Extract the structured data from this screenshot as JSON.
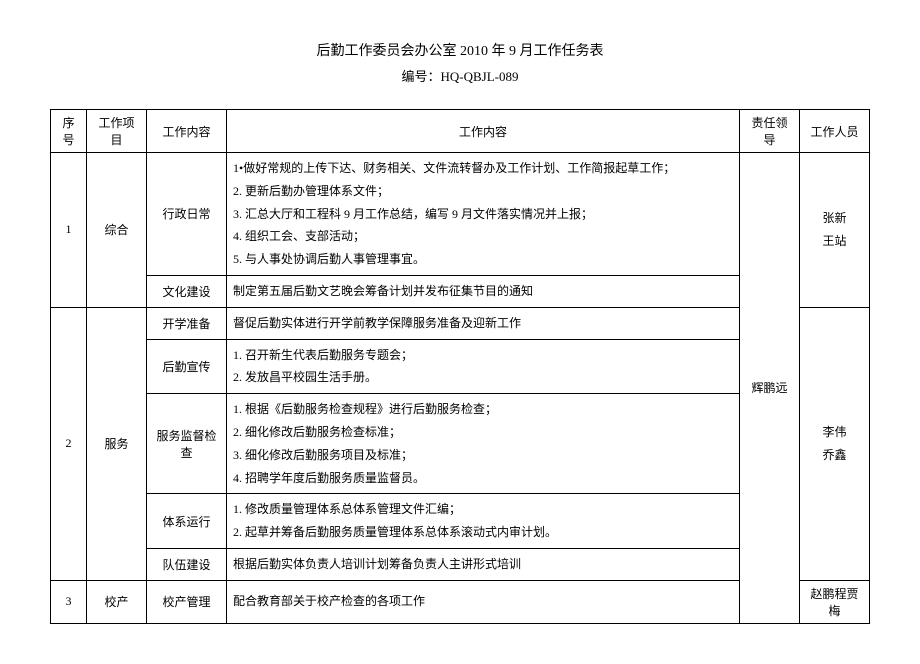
{
  "title": "后勤工作委员会办公室 2010 年 9 月工作任务表",
  "subtitle": "编号：HQ-QBJL-089",
  "headers": {
    "seq": "序号",
    "project": "工作项目",
    "category": "工作内容",
    "detail": "工作内容",
    "leader": "责任领导",
    "staff": "工作人员"
  },
  "rows": [
    {
      "seq": "1",
      "project": "综合",
      "cat1": "行政日常",
      "det1": "1•做好常规的上传下达、财务相关、文件流转督办及工作计划、工作简报起草工作；\n2. 更新后勤办管理体系文件；\n3. 汇总大厅和工程科 9 月工作总结，编写 9 月文件落实情况并上报；\n4. 组织工会、支部活动；\n5. 与人事处协调后勤人事管理事宜。",
      "cat2": "文化建设",
      "det2": "制定第五届后勤文艺晚会筹备计划并发布征集节目的通知",
      "staff": "张新\n王站"
    },
    {
      "seq": "2",
      "project": "服务",
      "cat1": "开学准备",
      "det1": "督促后勤实体进行开学前教学保障服务准备及迎新工作",
      "cat2": "后勤宣传",
      "det2": "1. 召开新生代表后勤服务专题会；\n2. 发放昌平校园生活手册。",
      "cat3": "服务监督检查",
      "det3": "1. 根据《后勤服务检查规程》进行后勤服务检查；\n2. 细化修改后勤服务检查标准；\n3. 细化修改后勤服务项目及标准；\n4. 招聘学年度后勤服务质量监督员。",
      "cat4": "体系运行",
      "det4": "1. 修改质量管理体系总体系管理文件汇编；\n2. 起草并筹备后勤服务质量管理体系总体系滚动式内审计划。",
      "cat5": "队伍建设",
      "det5": "根据后勤实体负责人培训计划筹备负责人主讲形式培训",
      "staff": "李伟\n乔鑫"
    },
    {
      "seq": "3",
      "project": "校产",
      "cat1": "校产管理",
      "det1": "配合教育部关于校产检查的各项工作",
      "staff": "赵鹏程贾梅"
    }
  ],
  "leader": "辉鹏远"
}
